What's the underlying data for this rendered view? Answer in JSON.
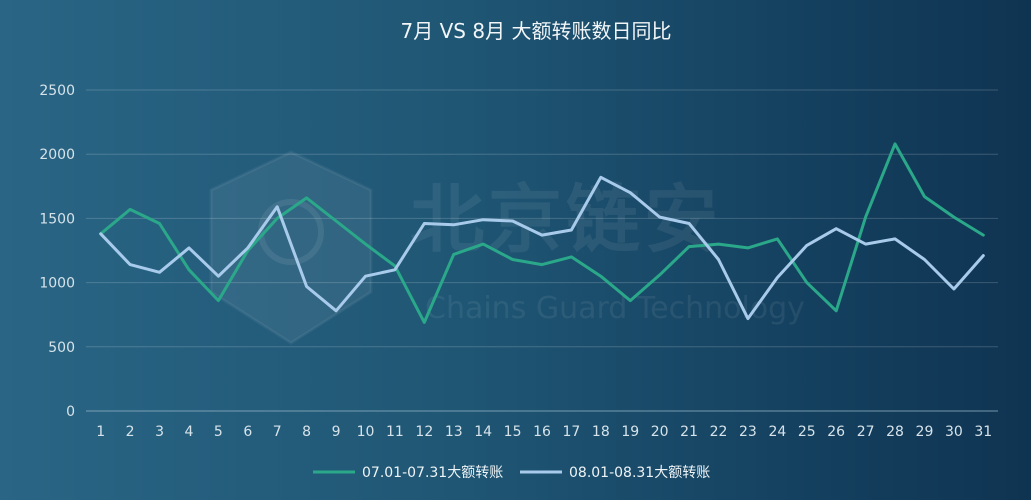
{
  "watermark": {
    "logo_text": "北京链安",
    "logo_subtext": "Chains Guard Technology"
  },
  "chart_data": {
    "type": "line",
    "title": "7月 VS 8月 大额转账数日同比",
    "xlabel": "",
    "ylabel": "",
    "categories": [
      "1",
      "2",
      "3",
      "4",
      "5",
      "6",
      "7",
      "8",
      "9",
      "10",
      "11",
      "12",
      "13",
      "14",
      "15",
      "16",
      "17",
      "18",
      "19",
      "20",
      "21",
      "22",
      "23",
      "24",
      "25",
      "26",
      "27",
      "28",
      "29",
      "30",
      "31"
    ],
    "ylim": [
      0,
      2500
    ],
    "yticks": [
      0,
      500,
      1000,
      1500,
      2000,
      2500
    ],
    "grid": true,
    "legend_position": "bottom-center",
    "series": [
      {
        "name": "07.01-07.31大额转账",
        "color": "#2aa889",
        "values": [
          1380,
          1570,
          1460,
          1100,
          860,
          1250,
          1500,
          1660,
          1480,
          1300,
          1130,
          690,
          1220,
          1300,
          1180,
          1140,
          1200,
          1050,
          860,
          1060,
          1280,
          1300,
          1270,
          1340,
          1000,
          780,
          1510,
          2080,
          1670,
          1510,
          1370
        ]
      },
      {
        "name": "08.01-08.31大额转账",
        "color": "#a9cbeb",
        "values": [
          1380,
          1140,
          1080,
          1270,
          1050,
          1270,
          1590,
          970,
          780,
          1050,
          1100,
          1460,
          1450,
          1490,
          1480,
          1370,
          1410,
          1820,
          1700,
          1510,
          1460,
          1180,
          720,
          1040,
          1290,
          1420,
          1300,
          1340,
          1180,
          950,
          1210
        ]
      }
    ]
  }
}
